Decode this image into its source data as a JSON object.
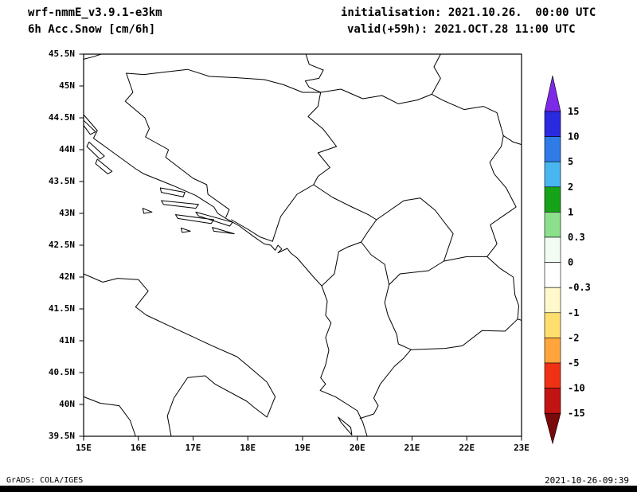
{
  "header": {
    "model": "wrf-nmmE_v3.9.1-e3km",
    "field": "6h Acc.Snow [cm/6h]",
    "init": "initialisation: 2021.10.26.  00:00 UTC",
    "valid": "valid(+59h): 2021.OCT.28 11:00 UTC"
  },
  "axes": {
    "lat_labels": [
      "45.5N",
      "45N",
      "44.5N",
      "44N",
      "43.5N",
      "43N",
      "42.5N",
      "42N",
      "41.5N",
      "41N",
      "40.5N",
      "40N",
      "39.5N"
    ],
    "lon_labels": [
      "15E",
      "16E",
      "17E",
      "18E",
      "19E",
      "20E",
      "21E",
      "22E",
      "23E"
    ]
  },
  "colorbar": {
    "tick_labels": [
      "15",
      "10",
      "5",
      "2",
      "1",
      "0.3",
      "0",
      "-0.3",
      "-1",
      "-2",
      "-5",
      "-10",
      "-15"
    ],
    "segment_colors": [
      "#2A2AE0",
      "#2F7BE8",
      "#49B6F0",
      "#17A317",
      "#8CE08C",
      "#F2FCF2",
      "#FFFFFF",
      "#FFF8CC",
      "#FFDE70",
      "#FFA53C",
      "#F03214",
      "#C31414"
    ],
    "arrow_top_color": "#7D2AE8",
    "arrow_bottom_color": "#7A0A0A",
    "line_color": "#000000"
  },
  "footer": {
    "credit": "GrADS: COLA/IGES",
    "timestamp": "2021-10-26-09:39"
  }
}
